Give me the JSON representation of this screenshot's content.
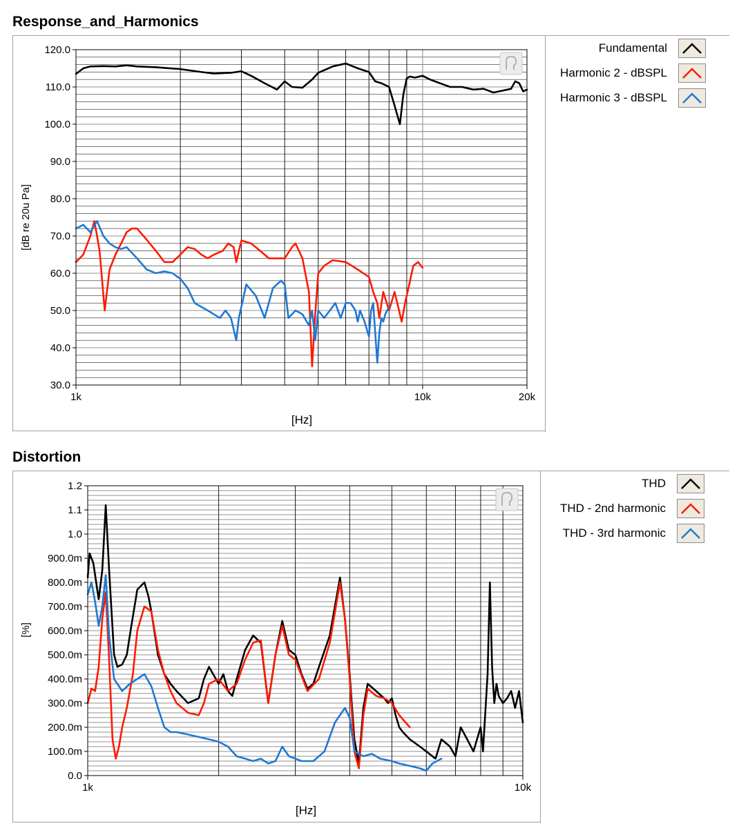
{
  "chart_data": [
    {
      "type": "line",
      "title": "Response_and_Harmonics",
      "xlabel": "[Hz]",
      "ylabel": "[dB re 20u Pa]",
      "x_scale": "log",
      "xlim": [
        1000,
        20000
      ],
      "ylim": [
        30,
        120
      ],
      "x_ticks": [
        {
          "value": 1000,
          "label": "1k"
        },
        {
          "value": 10000,
          "label": "10k"
        },
        {
          "value": 20000,
          "label": "20k"
        }
      ],
      "y_ticks": [
        "30.0",
        "40.0",
        "50.0",
        "60.0",
        "70.0",
        "80.0",
        "90.0",
        "100.0",
        "110.0",
        "120.0"
      ],
      "y_tick_values": [
        30,
        40,
        50,
        60,
        70,
        80,
        90,
        100,
        110,
        120
      ],
      "grid": true,
      "legend_position": "right",
      "series": [
        {
          "name": "Fundamental",
          "color": "#000000",
          "x": [
            1000,
            1050,
            1100,
            1200,
            1300,
            1400,
            1500,
            1700,
            2000,
            2300,
            2500,
            2800,
            3000,
            3200,
            3500,
            3800,
            4000,
            4200,
            4500,
            4800,
            5000,
            5500,
            6000,
            6500,
            7000,
            7300,
            7600,
            8000,
            8300,
            8600,
            8800,
            9000,
            9200,
            9500,
            10000,
            10500,
            11000,
            12000,
            13000,
            14000,
            15000,
            16000,
            17000,
            18000,
            18500,
            19000,
            19500,
            20000
          ],
          "y": [
            113.5,
            115,
            115.5,
            115.6,
            115.5,
            115.8,
            115.5,
            115.3,
            114.8,
            114,
            113.6,
            113.8,
            114.2,
            113,
            111,
            109.3,
            111.5,
            110,
            109.8,
            112,
            113.8,
            115.5,
            116.3,
            115,
            114,
            111.5,
            111,
            110,
            105,
            100,
            108,
            112.3,
            112.8,
            112.5,
            113,
            112,
            111.3,
            110,
            110,
            109.3,
            109.5,
            108.5,
            109,
            109.5,
            111.5,
            111,
            108.8,
            109.3
          ]
        },
        {
          "name": "Harmonic 2 - dBSPL",
          "color": "#ff1a00",
          "x": [
            1000,
            1050,
            1100,
            1130,
            1150,
            1170,
            1190,
            1210,
            1250,
            1300,
            1350,
            1400,
            1450,
            1500,
            1600,
            1700,
            1800,
            1900,
            2000,
            2100,
            2200,
            2300,
            2400,
            2500,
            2650,
            2750,
            2850,
            2900,
            3000,
            3200,
            3400,
            3600,
            3800,
            4000,
            4200,
            4300,
            4500,
            4700,
            4800,
            4900,
            5000,
            5200,
            5500,
            6000,
            6500,
            7000,
            7200,
            7400,
            7500,
            7700,
            8000,
            8300,
            8500,
            8700,
            8900,
            9100,
            9400,
            9700,
            10000
          ],
          "y": [
            63,
            65,
            70,
            74,
            70,
            66,
            58,
            50,
            61,
            65,
            68,
            71,
            72,
            72,
            69,
            66,
            63,
            63,
            65,
            67,
            66.5,
            65,
            64,
            65,
            66,
            68,
            67,
            63,
            68.8,
            68,
            66,
            64,
            64,
            64,
            67,
            68,
            64,
            55,
            35,
            49,
            60,
            62,
            63.5,
            63,
            61,
            59,
            55,
            52,
            48,
            55,
            50,
            55,
            51,
            47,
            52,
            56,
            62,
            63,
            61.5
          ]
        },
        {
          "name": "Harmonic 3 - dBSPL",
          "color": "#1e78d2",
          "x": [
            1000,
            1050,
            1100,
            1150,
            1200,
            1250,
            1300,
            1350,
            1400,
            1500,
            1600,
            1700,
            1800,
            1900,
            2000,
            2100,
            2200,
            2400,
            2600,
            2700,
            2800,
            2900,
            2950,
            3000,
            3100,
            3300,
            3400,
            3500,
            3700,
            3900,
            4000,
            4100,
            4300,
            4500,
            4700,
            4800,
            4900,
            5000,
            5200,
            5400,
            5600,
            5800,
            6000,
            6200,
            6400,
            6500,
            6600,
            6800,
            7000,
            7100,
            7200,
            7400,
            7500,
            7600,
            7700,
            7800,
            8000
          ],
          "y": [
            72,
            73,
            71,
            74,
            70,
            68,
            67,
            66.5,
            67,
            64,
            61,
            60,
            60.5,
            60,
            58.5,
            56,
            52,
            50,
            48,
            50,
            48,
            42,
            48,
            51,
            57,
            54,
            51,
            48,
            56,
            58,
            57,
            48,
            50,
            49,
            46,
            50,
            42,
            50,
            48,
            50,
            52,
            48,
            52,
            52,
            50,
            47,
            50,
            47,
            43,
            50,
            52,
            36,
            44,
            48,
            47,
            49,
            51
          ]
        }
      ]
    },
    {
      "type": "line",
      "title": "Distortion",
      "xlabel": "[Hz]",
      "ylabel": "[%]",
      "x_scale": "log",
      "xlim": [
        1000,
        10000
      ],
      "ylim": [
        0,
        1.2
      ],
      "x_ticks": [
        {
          "value": 1000,
          "label": "1k"
        },
        {
          "value": 10000,
          "label": "10k"
        }
      ],
      "y_ticks": [
        "0.0",
        "100.0m",
        "200.0m",
        "300.0m",
        "400.0m",
        "500.0m",
        "600.0m",
        "700.0m",
        "800.0m",
        "900.0m",
        "1.0",
        "1.1",
        "1.2"
      ],
      "y_tick_values": [
        0,
        0.1,
        0.2,
        0.3,
        0.4,
        0.5,
        0.6,
        0.7,
        0.8,
        0.9,
        1.0,
        1.1,
        1.2
      ],
      "grid": true,
      "legend_position": "right",
      "series": [
        {
          "name": "THD",
          "color": "#000000",
          "x": [
            1000,
            1010,
            1030,
            1060,
            1080,
            1100,
            1120,
            1150,
            1170,
            1200,
            1230,
            1260,
            1300,
            1350,
            1380,
            1400,
            1450,
            1500,
            1550,
            1600,
            1700,
            1800,
            1850,
            1900,
            2000,
            2050,
            2100,
            2150,
            2200,
            2300,
            2400,
            2500,
            2600,
            2700,
            2800,
            2900,
            3000,
            3100,
            3200,
            3300,
            3400,
            3600,
            3800,
            3900,
            4000,
            4100,
            4200,
            4300,
            4400,
            4600,
            4800,
            4900,
            5000,
            5100,
            5200,
            5300,
            5500,
            5800,
            6000,
            6300,
            6500,
            6800,
            7000,
            7200,
            7500,
            7700,
            8000,
            8100,
            8300,
            8400,
            8500,
            8600,
            8700,
            8800,
            9000,
            9200,
            9400,
            9600,
            9800,
            10000
          ],
          "y": [
            0.82,
            0.92,
            0.88,
            0.73,
            0.85,
            1.12,
            0.85,
            0.5,
            0.45,
            0.46,
            0.5,
            0.62,
            0.77,
            0.8,
            0.74,
            0.68,
            0.5,
            0.42,
            0.38,
            0.35,
            0.3,
            0.32,
            0.4,
            0.45,
            0.38,
            0.42,
            0.35,
            0.33,
            0.4,
            0.52,
            0.58,
            0.55,
            0.3,
            0.5,
            0.64,
            0.52,
            0.5,
            0.42,
            0.36,
            0.38,
            0.45,
            0.58,
            0.82,
            0.65,
            0.42,
            0.15,
            0.05,
            0.28,
            0.38,
            0.35,
            0.32,
            0.3,
            0.32,
            0.25,
            0.2,
            0.18,
            0.15,
            0.12,
            0.1,
            0.07,
            0.15,
            0.12,
            0.08,
            0.2,
            0.14,
            0.1,
            0.2,
            0.1,
            0.42,
            0.8,
            0.45,
            0.3,
            0.38,
            0.33,
            0.3,
            0.32,
            0.35,
            0.28,
            0.35,
            0.22
          ]
        },
        {
          "name": "THD - 2nd harmonic",
          "color": "#ff1a00",
          "x": [
            1000,
            1020,
            1040,
            1060,
            1080,
            1100,
            1120,
            1140,
            1160,
            1180,
            1200,
            1230,
            1270,
            1300,
            1350,
            1400,
            1450,
            1500,
            1550,
            1600,
            1700,
            1800,
            1850,
            1900,
            2000,
            2100,
            2200,
            2300,
            2400,
            2500,
            2600,
            2700,
            2800,
            2900,
            3000,
            3200,
            3400,
            3600,
            3800,
            3900,
            4000,
            4100,
            4200,
            4300,
            4400,
            4600,
            4800,
            5000,
            5200,
            5500
          ],
          "y": [
            0.3,
            0.36,
            0.35,
            0.45,
            0.65,
            0.76,
            0.48,
            0.15,
            0.07,
            0.12,
            0.2,
            0.28,
            0.42,
            0.6,
            0.7,
            0.68,
            0.52,
            0.42,
            0.35,
            0.3,
            0.26,
            0.25,
            0.3,
            0.38,
            0.4,
            0.35,
            0.38,
            0.48,
            0.55,
            0.56,
            0.3,
            0.5,
            0.62,
            0.5,
            0.48,
            0.35,
            0.4,
            0.55,
            0.8,
            0.65,
            0.4,
            0.1,
            0.03,
            0.25,
            0.36,
            0.33,
            0.32,
            0.3,
            0.25,
            0.2
          ]
        },
        {
          "name": "THD - 3rd harmonic",
          "color": "#1e78d2",
          "x": [
            1000,
            1020,
            1040,
            1060,
            1080,
            1100,
            1120,
            1150,
            1200,
            1250,
            1300,
            1350,
            1400,
            1450,
            1500,
            1550,
            1600,
            1700,
            1800,
            1900,
            2000,
            2100,
            2200,
            2300,
            2400,
            2500,
            2600,
            2700,
            2800,
            2900,
            3000,
            3100,
            3300,
            3500,
            3700,
            3900,
            4000,
            4100,
            4300,
            4500,
            4700,
            5000,
            5200,
            5500,
            5800,
            6000,
            6200,
            6500
          ],
          "y": [
            0.75,
            0.8,
            0.72,
            0.62,
            0.7,
            0.83,
            0.58,
            0.4,
            0.35,
            0.38,
            0.4,
            0.42,
            0.37,
            0.28,
            0.2,
            0.18,
            0.18,
            0.17,
            0.16,
            0.15,
            0.14,
            0.12,
            0.08,
            0.07,
            0.06,
            0.07,
            0.05,
            0.06,
            0.12,
            0.08,
            0.07,
            0.06,
            0.06,
            0.1,
            0.22,
            0.28,
            0.24,
            0.1,
            0.08,
            0.09,
            0.07,
            0.06,
            0.05,
            0.04,
            0.03,
            0.02,
            0.05,
            0.07
          ]
        }
      ]
    }
  ]
}
